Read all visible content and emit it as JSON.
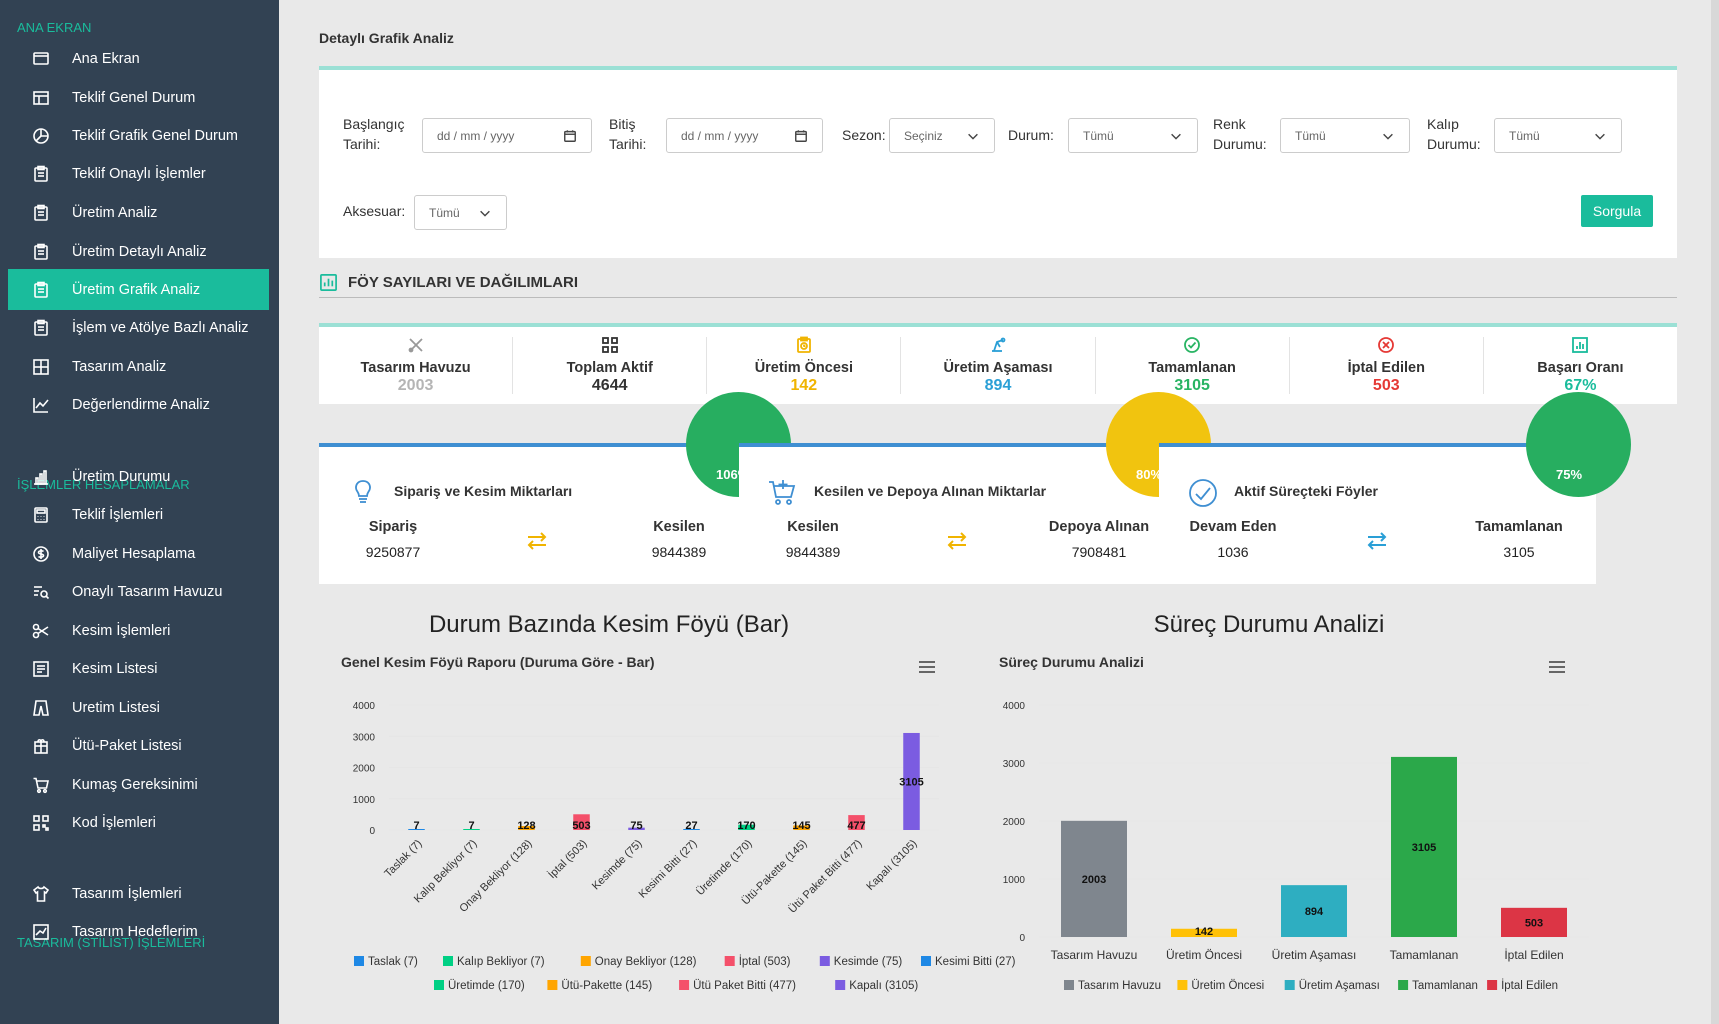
{
  "sidebar": {
    "sections": [
      "ANA EKRAN",
      "İŞLEMLER HESAPLAMALAR",
      "TASARIM (STİLİST) İŞLEMLERİ"
    ],
    "items": [
      {
        "label": "Ana Ekran",
        "icon": "monitor-icon"
      },
      {
        "label": "Teklif Genel Durum",
        "icon": "layout-icon"
      },
      {
        "label": "Teklif Grafik Genel Durum",
        "icon": "pie-chart-icon"
      },
      {
        "label": "Teklif Onaylı İşlemler",
        "icon": "clipboard-icon"
      },
      {
        "label": "Üretim Analiz",
        "icon": "clipboard-icon"
      },
      {
        "label": "Üretim Detaylı Analiz",
        "icon": "clipboard-icon"
      },
      {
        "label": "Üretim Grafik Analiz",
        "icon": "clipboard-icon"
      },
      {
        "label": "İşlem ve Atölye Bazlı Analiz",
        "icon": "clipboard-icon"
      },
      {
        "label": "Tasarım Analiz",
        "icon": "grid-icon"
      },
      {
        "label": "Değerlendirme Analiz",
        "icon": "line-chart-icon"
      },
      {
        "label": "Üretim Durumu",
        "icon": "bar-chart-icon"
      },
      {
        "label": "Teklif İşlemleri",
        "icon": "calculator-icon"
      },
      {
        "label": "Maliyet Hesaplama",
        "icon": "dollar-icon"
      },
      {
        "label": "Onaylı Tasarım Havuzu",
        "icon": "search-list-icon"
      },
      {
        "label": "Kesim İşlemleri",
        "icon": "scissors-icon"
      },
      {
        "label": "Kesim Listesi",
        "icon": "list-icon"
      },
      {
        "label": "Uretim Listesi",
        "icon": "pants-icon"
      },
      {
        "label": "Ütü-Paket Listesi",
        "icon": "package-icon"
      },
      {
        "label": "Kumaş Gereksinimi",
        "icon": "cart-icon"
      },
      {
        "label": "Kod İşlemleri",
        "icon": "qr-icon"
      },
      {
        "label": "Tasarım İşlemleri",
        "icon": "shirt-icon"
      },
      {
        "label": "Tasarım Hedeflerim",
        "icon": "chart-icon"
      }
    ]
  },
  "page": {
    "title": "Detaylı Grafik Analiz"
  },
  "filters": {
    "start_label_1": "Başlangıç",
    "start_label_2": "Tarihi:",
    "start_placeholder": "dd / mm / yyyy",
    "end_label_1": "Bitiş",
    "end_label_2": "Tarihi:",
    "end_placeholder": "dd / mm / yyyy",
    "season_label": "Sezon:",
    "season_value": "Seçiniz",
    "status_label": "Durum:",
    "status_value": "Tümü",
    "color_label_1": "Renk",
    "color_label_2": "Durumu:",
    "color_value": "Tümü",
    "mold_label_1": "Kalıp",
    "mold_label_2": "Durumu:",
    "mold_value": "Tümü",
    "accessory_label": "Aksesuar:",
    "accessory_value": "Tümü",
    "submit_label": "Sorgula"
  },
  "section": {
    "title": "FÖY SAYILARI VE DAĞILIMLARI"
  },
  "stats": [
    {
      "label": "Tasarım Havuzu",
      "value": "2003",
      "color": "#b5b5b5",
      "icon": "cross-tools-icon"
    },
    {
      "label": "Toplam Aktif",
      "value": "4644",
      "color": "#333333",
      "icon": "qr-grid-icon"
    },
    {
      "label": "Üretim Öncesi",
      "value": "142",
      "color": "#f0b400",
      "icon": "clipboard-clock-icon"
    },
    {
      "label": "Üretim Aşaması",
      "value": "894",
      "color": "#2a9fd6",
      "icon": "machine-icon"
    },
    {
      "label": "Tamamlanan",
      "value": "3105",
      "color": "#28b463",
      "icon": "check-circle-icon"
    },
    {
      "label": "İptal Edilen",
      "value": "503",
      "color": "#e53935",
      "icon": "x-circle-icon"
    },
    {
      "label": "Başarı Oranı",
      "value": "67%",
      "color": "#1abc9c",
      "icon": "bar-chart-icon"
    }
  ],
  "metric_cards": [
    {
      "title": "Sipariş ve Kesim Miktarları",
      "badge": "106%",
      "badge_color": "#27ae60",
      "left_label": "Sipariş",
      "left_value": "9250877",
      "right_label": "Kesilen",
      "right_value": "9844389",
      "arrow_color": "#f0b400",
      "icon": "lightbulb-icon"
    },
    {
      "title": "Kesilen ve Depoya Alınan Miktarlar",
      "badge": "80%",
      "badge_color": "#f1c40f",
      "left_label": "Kesilen",
      "left_value": "9844389",
      "right_label": "Depoya Alınan",
      "right_value": "7908481",
      "arrow_color": "#f0b400",
      "icon": "cart-plus-icon"
    },
    {
      "title": "Aktif Süreçteki Föyler",
      "badge": "75%",
      "badge_color": "#27ae60",
      "left_label": "Devam Eden",
      "left_value": "1036",
      "right_label": "Tamamlanan",
      "right_value": "3105",
      "arrow_color": "#2a9fd6",
      "icon": "clock-check-icon"
    }
  ],
  "chart_headers": [
    "Durum Bazında Kesim Föyü (Bar)",
    "Süreç Durumu Analizi"
  ],
  "chart_data": [
    {
      "type": "bar",
      "title": "Genel Kesim Föyü Raporu (Duruma Göre - Bar)",
      "categories": [
        "Taslak (7)",
        "Kalıp Bekliyor (7)",
        "Onay Bekliyor (128)",
        "İptal (503)",
        "Kesimde (75)",
        "Kesimi Bitti (27)",
        "Üretimde (170)",
        "Ütü-Pakette (145)",
        "Ütü Paket Bitti (477)",
        "Kapalı (3105)"
      ],
      "values": [
        7,
        7,
        128,
        503,
        75,
        27,
        170,
        145,
        477,
        3105
      ],
      "colors": [
        "#1e88e5",
        "#00d084",
        "#ffa500",
        "#f4506a",
        "#7b5ce1",
        "#1e88e5",
        "#00d084",
        "#ffa500",
        "#f4506a",
        "#7b5ce1"
      ],
      "legend": [
        "Taslak (7)",
        "Kalıp Bekliyor (7)",
        "Onay Bekliyor (128)",
        "İptal (503)",
        "Kesimde (75)",
        "Kesimi Bitti (27)",
        "Üretimde (170)",
        "Ütü-Pakette (145)",
        "Ütü Paket Bitti (477)",
        "Kapalı (3105)"
      ],
      "yticks": [
        0,
        1000,
        2000,
        3000,
        4000
      ],
      "ylim": [
        0,
        4000
      ],
      "legend_position": "bottom"
    },
    {
      "type": "bar",
      "title": "Süreç Durumu Analizi",
      "categories": [
        "Tasarım Havuzu",
        "Üretim Öncesi",
        "Üretim Aşaması",
        "Tamamlanan",
        "İptal Edilen"
      ],
      "values": [
        2003,
        142,
        894,
        3105,
        503
      ],
      "colors": [
        "#7f868e",
        "#ffc107",
        "#2eaec1",
        "#2ba84a",
        "#dc3545"
      ],
      "legend": [
        "Tasarım Havuzu",
        "Üretim Öncesi",
        "Üretim Aşaması",
        "Tamamlanan",
        "İptal Edilen"
      ],
      "yticks": [
        0,
        1000,
        2000,
        3000,
        4000
      ],
      "ylim": [
        0,
        4000
      ],
      "legend_position": "bottom"
    }
  ]
}
